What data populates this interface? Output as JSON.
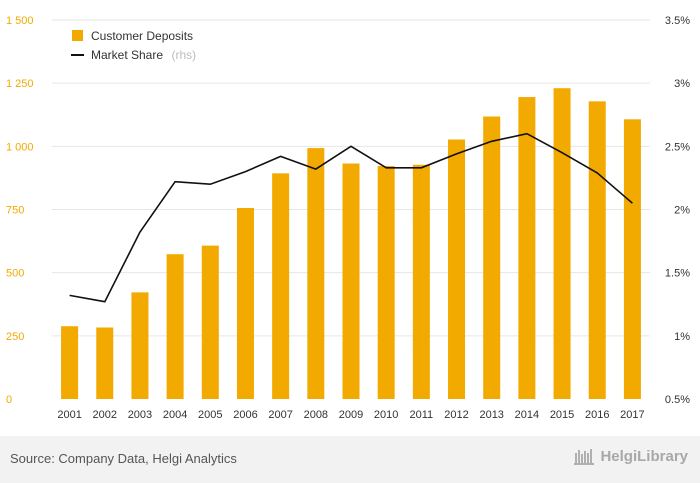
{
  "chart_data": {
    "type": "bar+line",
    "categories": [
      "2001",
      "2002",
      "2003",
      "2004",
      "2005",
      "2006",
      "2007",
      "2008",
      "2009",
      "2010",
      "2011",
      "2012",
      "2013",
      "2014",
      "2015",
      "2016",
      "2017"
    ],
    "series": [
      {
        "name": "Customer Deposits",
        "type": "bar",
        "axis": "left",
        "color": "#f2a900",
        "values": [
          288,
          283,
          422,
          573,
          607,
          756,
          893,
          993,
          932,
          922,
          927,
          1027,
          1118,
          1195,
          1230,
          1178,
          1107
        ]
      },
      {
        "name": "Market Share",
        "legend_suffix": "(rhs)",
        "type": "line",
        "axis": "right",
        "color": "#111111",
        "values": [
          1.32,
          1.27,
          1.82,
          2.22,
          2.2,
          2.3,
          2.42,
          2.32,
          2.5,
          2.33,
          2.33,
          2.44,
          2.54,
          2.6,
          2.45,
          2.29,
          2.05
        ]
      }
    ],
    "y_left": {
      "ylim": [
        0,
        1500
      ],
      "ticks": [
        0,
        250,
        500,
        750,
        1000,
        1250,
        1500
      ],
      "tick_labels": [
        "0",
        "250",
        "500",
        "750",
        "1 000",
        "1 250",
        "1 500"
      ]
    },
    "y_right": {
      "ylim": [
        0.5,
        3.5
      ],
      "ticks": [
        0.5,
        1,
        1.5,
        2,
        2.5,
        3,
        3.5
      ],
      "tick_labels": [
        "0.5%",
        "1%",
        "1.5%",
        "2%",
        "2.5%",
        "3%",
        "3.5%"
      ]
    },
    "grid": true,
    "legend_position": "top-left"
  },
  "footer": {
    "source": "Source: Company Data, Helgi Analytics",
    "logo_text": "HelgiLibrary"
  }
}
